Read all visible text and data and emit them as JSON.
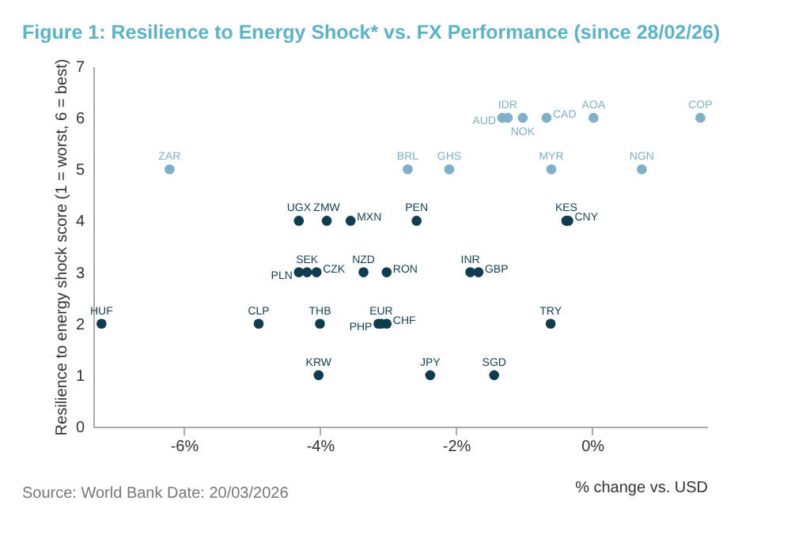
{
  "chart_data": {
    "type": "scatter",
    "title": "Figure 1: Resilience to Energy Shock* vs. FX Performance (since 28/02/26)",
    "xlabel": "% change vs. USD",
    "ylabel": "Resilience to energy shock score (1 = worst, 6 = best)",
    "annotations": [
      "Source: World Bank Date: 20/03/2026"
    ],
    "xlim": [
      -7.33,
      1.69
    ],
    "xticks": [
      {
        "value": -6,
        "label": "-6%"
      },
      {
        "value": -4,
        "label": "-4%"
      },
      {
        "value": -2,
        "label": "-2%"
      },
      {
        "value": 0,
        "label": "0%"
      }
    ],
    "ylim": [
      0,
      7
    ],
    "yticks": [
      0,
      1,
      2,
      3,
      4,
      5,
      6,
      7
    ],
    "grid": false,
    "legend": false,
    "marker": "circle",
    "series": [
      {
        "color": "#7fb0c8",
        "value_labels": [
          "ZAR",
          "BRL",
          "GHS",
          "MYR",
          "NGN",
          "AUD",
          "IDR",
          "NOK",
          "CAD",
          "AOA",
          "COP"
        ],
        "x": [
          -6.21,
          -2.71,
          -2.1,
          -0.6,
          0.73,
          -1.32,
          -1.24,
          -1.02,
          -0.67,
          0.02,
          1.59
        ],
        "values": [
          5,
          5,
          5,
          5,
          5,
          6,
          6,
          6,
          6,
          6,
          6
        ]
      },
      {
        "color": "#0d3d4f",
        "value_labels": [
          "HUF",
          "CLP",
          "THB",
          "PHP",
          "EUR",
          "CHF",
          "TRY",
          "KRW",
          "JPY",
          "SGD",
          "PLN",
          "SEK",
          "CZK",
          "NZD",
          "RON",
          "INR",
          "GBP",
          "UGX",
          "ZMW",
          "MXN",
          "PEN",
          "KES",
          "CNY"
        ],
        "x": [
          -7.21,
          -4.9,
          -4.0,
          -3.14,
          -3.1,
          -3.02,
          -0.61,
          -4.02,
          -2.38,
          -1.44,
          -4.31,
          -4.19,
          -4.05,
          -3.36,
          -3.02,
          -1.79,
          -1.67,
          -4.31,
          -3.9,
          -3.55,
          -2.58,
          -0.38,
          -0.35
        ],
        "values": [
          2,
          2,
          2,
          2,
          2,
          2,
          2,
          1,
          1,
          1,
          3,
          3,
          3,
          3,
          3,
          3,
          3,
          4,
          4,
          4,
          4,
          4,
          4
        ]
      }
    ]
  }
}
